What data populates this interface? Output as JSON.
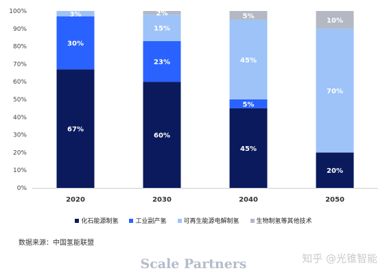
{
  "chart_data": {
    "type": "bar",
    "stacked": true,
    "categories": [
      "2020",
      "2030",
      "2040",
      "2050"
    ],
    "series": [
      {
        "name": "化石能源制氢",
        "color": "#0a1a5c",
        "values": [
          67,
          60,
          45,
          20
        ],
        "labels": [
          "67%",
          "60%",
          "45%",
          "20%"
        ]
      },
      {
        "name": "工业副产氢",
        "color": "#2962ff",
        "values": [
          30,
          23,
          5,
          0
        ],
        "labels": [
          "30%",
          "23%",
          "5%",
          ""
        ]
      },
      {
        "name": "可再生能源电解制氢",
        "color": "#9dc3f8",
        "values": [
          3,
          15,
          45,
          70
        ],
        "labels": [
          "3%",
          "15%",
          "45%",
          "70%"
        ]
      },
      {
        "name": "生物制氢等其他技术",
        "color": "#b3b8c3",
        "values": [
          0,
          2,
          5,
          10
        ],
        "labels": [
          "",
          "2%",
          "5%",
          "10%"
        ]
      }
    ],
    "ylim": [
      0,
      100
    ],
    "yticks": [
      "0%",
      "10%",
      "20%",
      "30%",
      "40%",
      "50%",
      "60%",
      "70%",
      "80%",
      "90%",
      "100%"
    ],
    "grid": false,
    "legend_position": "bottom"
  },
  "source": "数据来源：中国氢能联盟",
  "watermark": "Scale Partners",
  "watermark_zhihu": "知乎 @光锥智能"
}
